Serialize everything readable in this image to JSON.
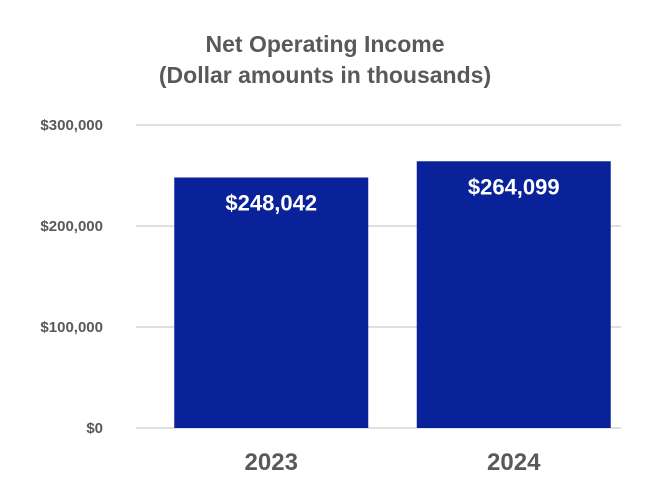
{
  "chart_data": {
    "type": "bar",
    "title": [
      "Net Operating Income",
      "(Dollar amounts in thousands)"
    ],
    "categories": [
      "2023",
      "2024"
    ],
    "values": [
      248042,
      264099
    ],
    "data_labels": [
      "$248,042",
      "$264,099"
    ],
    "xlabel": "",
    "ylabel": "",
    "ylim": [
      0,
      300000
    ],
    "yticks": [
      0,
      100000,
      200000,
      300000
    ],
    "ytick_labels": [
      "$0",
      "$100,000",
      "$200,000",
      "$300,000"
    ],
    "grid": true,
    "legend": "none",
    "bar_color": "#0A2299",
    "grid_color": "#E0E0E0"
  }
}
